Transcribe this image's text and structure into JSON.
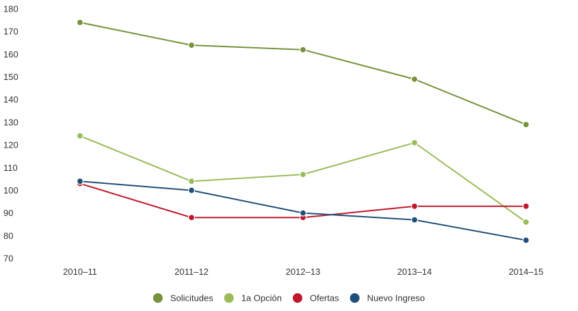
{
  "chart_data": {
    "type": "line",
    "title": "",
    "xlabel": "",
    "ylabel": "",
    "categories": [
      "2010–11",
      "2011–12",
      "2012–13",
      "2013–14",
      "2014–15"
    ],
    "ylim": [
      70,
      180
    ],
    "yticks": [
      70,
      80,
      90,
      100,
      110,
      120,
      130,
      140,
      150,
      160,
      170,
      180
    ],
    "grid": false,
    "legend_position": "bottom",
    "series": [
      {
        "name": "Solicitudes",
        "color": "#76923c",
        "values": [
          174,
          164,
          162,
          149,
          129
        ]
      },
      {
        "name": "1a Opción",
        "color": "#9bbb59",
        "values": [
          124,
          104,
          107,
          121,
          86
        ]
      },
      {
        "name": "Ofertas",
        "color": "#c0182a",
        "values": [
          103,
          88,
          88,
          93,
          93
        ]
      },
      {
        "name": "Nuevo Ingreso",
        "color": "#1f4e79",
        "values": [
          104,
          100,
          90,
          87,
          78
        ]
      }
    ]
  }
}
